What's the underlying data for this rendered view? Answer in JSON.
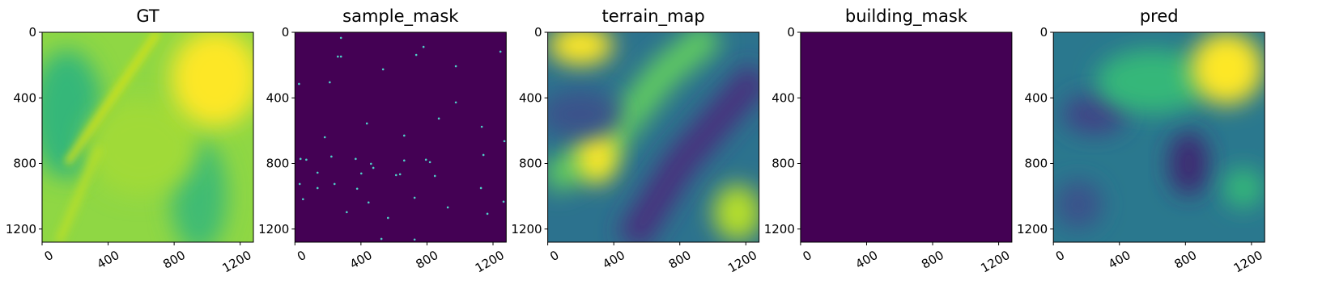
{
  "chart_data": [
    {
      "type": "image",
      "title": "GT",
      "xlim": [
        0,
        1280
      ],
      "ylim": [
        1280,
        0
      ],
      "xticks": [
        0,
        400,
        800,
        1200
      ],
      "yticks": [
        0,
        400,
        800,
        1200
      ]
    },
    {
      "type": "image",
      "title": "sample_mask",
      "xlim": [
        0,
        1280
      ],
      "ylim": [
        1280,
        0
      ],
      "xticks": [
        0,
        400,
        800,
        1200
      ],
      "yticks": [
        0,
        400,
        800,
        1200
      ],
      "points": {
        "x": [
          279,
          260,
          279,
          25,
          211,
          534,
          735,
          779,
          1245,
          975,
          975,
          436,
          662,
          872,
          181,
          34,
          69,
          221,
          368,
          461,
          475,
          402,
          137,
          662,
          794,
          818,
          848,
          637,
          613,
          1269,
          1132,
          1142,
          29,
          49,
          137,
          240,
          377,
          446,
          725,
          926,
          1127,
          1166,
          1264,
          314,
          524,
          725,
          564
        ],
        "y": [
          34,
          148,
          148,
          315,
          305,
          226,
          138,
          89,
          118,
          207,
          428,
          556,
          630,
          526,
          640,
          772,
          777,
          758,
          772,
          802,
          827,
          861,
          856,
          782,
          777,
          792,
          876,
          866,
          871,
          664,
          576,
          748,
          925,
          1018,
          950,
          925,
          954,
          1038,
          1009,
          1068,
          950,
          1107,
          1033,
          1097,
          1260,
          1264,
          1132
        ]
      }
    },
    {
      "type": "image",
      "title": "terrain_map",
      "xlim": [
        0,
        1280
      ],
      "ylim": [
        1280,
        0
      ],
      "xticks": [
        0,
        400,
        800,
        1200
      ],
      "yticks": [
        0,
        400,
        800,
        1200
      ]
    },
    {
      "type": "image",
      "title": "building_mask",
      "xlim": [
        0,
        1280
      ],
      "ylim": [
        1280,
        0
      ],
      "xticks": [
        0,
        400,
        800,
        1200
      ],
      "yticks": [
        0,
        400,
        800,
        1200
      ]
    },
    {
      "type": "image",
      "title": "pred",
      "xlim": [
        0,
        1280
      ],
      "ylim": [
        1280,
        0
      ],
      "xticks": [
        0,
        400,
        800,
        1200
      ],
      "yticks": [
        0,
        400,
        800,
        1200
      ]
    }
  ]
}
